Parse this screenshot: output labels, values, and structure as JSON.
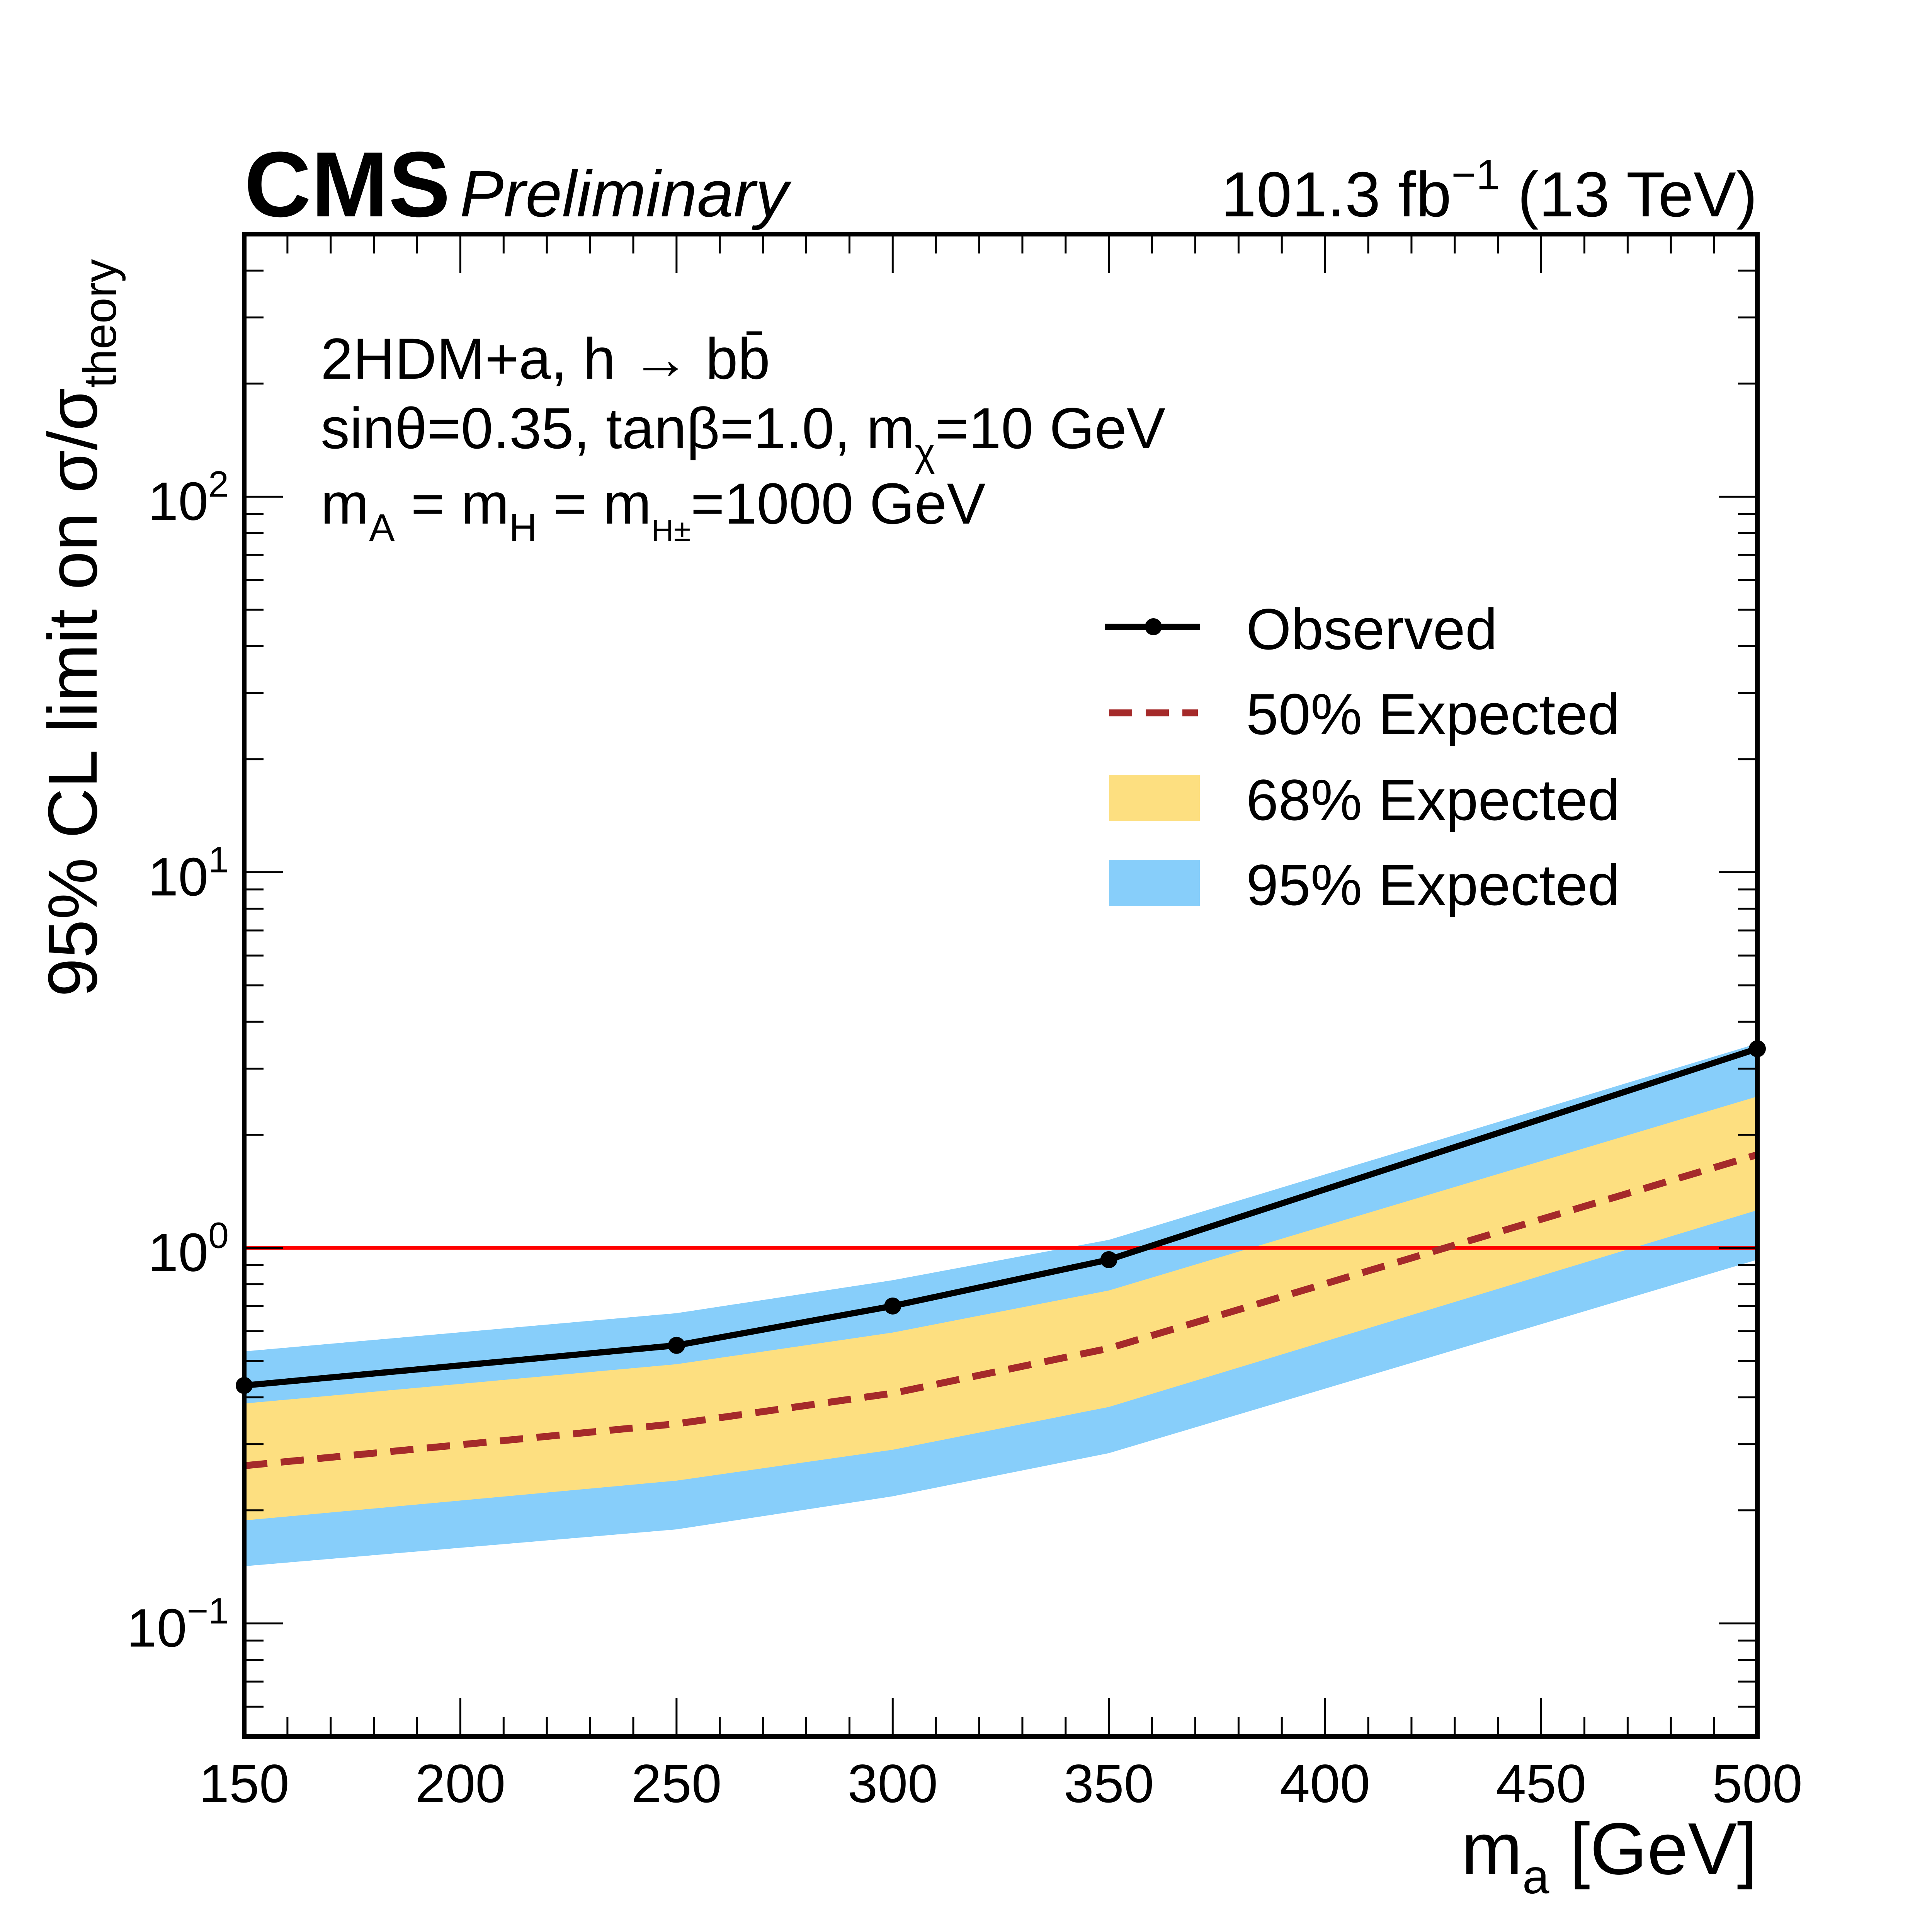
{
  "header": {
    "experiment": "CMS",
    "status": "Preliminary",
    "lumi": "101.3 fb",
    "lumi_exp": "−1",
    "energy": "(13 TeV)"
  },
  "annotation": {
    "line1": "2HDM+a, h → bb̄",
    "line2_a": "sinθ=0.35, tanβ=1.0, m",
    "line2_sub": "χ",
    "line2_b": "=10 GeV",
    "line3_m1": "m",
    "line3_s1": "A",
    "line3_m2": " = m",
    "line3_s2": "H",
    "line3_m3": " = m",
    "line3_s3": "H±",
    "line3_end": "=1000 GeV"
  },
  "legend": {
    "observed": "Observed",
    "exp50": "50% Expected",
    "exp68": "68% Expected",
    "exp95": "95% Expected"
  },
  "colors": {
    "observed": "#000000",
    "expected": "#a52a2a",
    "band68": "#fddf80",
    "band95": "#87cefa",
    "reference": "#ff0000"
  },
  "chart_data": {
    "type": "line",
    "title": "",
    "xlabel": "m_a [GeV]",
    "ylabel": "95% CL limit on σ/σ_theory",
    "xlim": [
      150,
      500
    ],
    "ylim": [
      0.05,
      500
    ],
    "yscale": "log",
    "x_ticks": [
      150,
      200,
      250,
      300,
      350,
      400,
      450,
      500
    ],
    "y_ticks": [
      {
        "value": 0.1,
        "label": "10",
        "exp": "−1"
      },
      {
        "value": 1,
        "label": "10",
        "exp": "0"
      },
      {
        "value": 10,
        "label": "10",
        "exp": "1"
      },
      {
        "value": 100,
        "label": "10",
        "exp": "2"
      }
    ],
    "x": [
      150,
      250,
      300,
      350,
      500
    ],
    "series": [
      {
        "name": "Observed",
        "values": [
          0.43,
          0.55,
          0.7,
          0.93,
          3.39
        ]
      },
      {
        "name": "50% Expected",
        "values": [
          0.263,
          0.34,
          0.41,
          0.54,
          1.77
        ]
      },
      {
        "name": "68% Expected up",
        "values": [
          0.385,
          0.49,
          0.595,
          0.77,
          2.53
        ]
      },
      {
        "name": "68% Expected down",
        "values": [
          0.188,
          0.24,
          0.29,
          0.377,
          1.26
        ]
      },
      {
        "name": "95% Expected up",
        "values": [
          0.53,
          0.67,
          0.82,
          1.05,
          3.5
        ]
      },
      {
        "name": "95% Expected down",
        "values": [
          0.142,
          0.178,
          0.218,
          0.284,
          0.93
        ]
      }
    ],
    "reference_line": 1.0,
    "legend_position": "top-right",
    "grid": false
  }
}
